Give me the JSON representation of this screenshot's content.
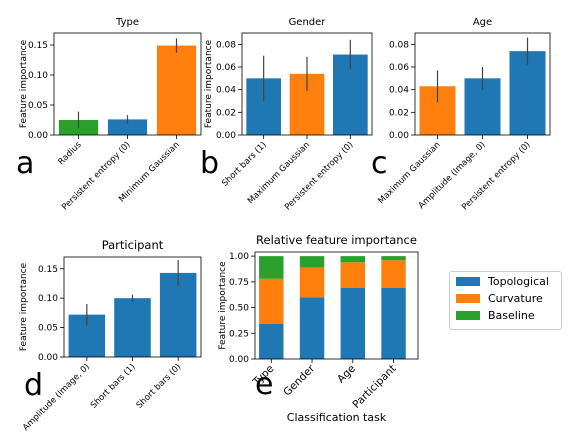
{
  "colors": {
    "topological": "#1f77b4",
    "curvature": "#ff7f0e",
    "baseline": "#2ca02c",
    "errorbar": "#444444"
  },
  "chart_data": [
    {
      "panel": "a",
      "type": "bar",
      "title": "Type",
      "ylabel": "Feature importance",
      "ylim": [
        0,
        0.17
      ],
      "yticks": [
        "0.00",
        "0.05",
        "0.10",
        "0.15"
      ],
      "ytick_values": [
        0,
        0.05,
        0.1,
        0.15
      ],
      "categories": [
        "Radius",
        "Persistent entropy (0)",
        "Minimum Gaussian"
      ],
      "values": [
        0.025,
        0.026,
        0.149
      ],
      "errors": [
        0.014,
        0.007,
        0.012
      ],
      "bar_colors": [
        "baseline",
        "topological",
        "curvature"
      ]
    },
    {
      "panel": "b",
      "type": "bar",
      "title": "Gender",
      "ylabel": "Feature importance",
      "ylim": [
        0,
        0.09
      ],
      "yticks": [
        "0.00",
        "0.02",
        "0.04",
        "0.06",
        "0.08"
      ],
      "ytick_values": [
        0,
        0.02,
        0.04,
        0.06,
        0.08
      ],
      "categories": [
        "Short bars (1)",
        "Maximum Gaussian",
        "Persistent entropy (0)"
      ],
      "values": [
        0.05,
        0.054,
        0.071
      ],
      "errors": [
        0.02,
        0.015,
        0.013
      ],
      "bar_colors": [
        "topological",
        "curvature",
        "topological"
      ]
    },
    {
      "panel": "c",
      "type": "bar",
      "title": "Age",
      "ylabel": "",
      "ylim": [
        0,
        0.09
      ],
      "yticks": [
        "0.00",
        "0.02",
        "0.04",
        "0.06",
        "0.08"
      ],
      "ytick_values": [
        0,
        0.02,
        0.04,
        0.06,
        0.08
      ],
      "categories": [
        "Maximum Gaussian",
        "Amplitude (Image, 0)",
        "Persistent entropy (0)"
      ],
      "values": [
        0.043,
        0.05,
        0.074
      ],
      "errors": [
        0.014,
        0.01,
        0.012
      ],
      "bar_colors": [
        "curvature",
        "topological",
        "topological"
      ]
    },
    {
      "panel": "d",
      "type": "bar",
      "title": "Participant",
      "ylabel": "Feature importance",
      "ylim": [
        0,
        0.17
      ],
      "yticks": [
        "0.00",
        "0.05",
        "0.10",
        "0.15"
      ],
      "ytick_values": [
        0,
        0.05,
        0.1,
        0.15
      ],
      "categories": [
        "Amplitude (Image, 0)",
        "Short bars (1)",
        "Short bars (0)"
      ],
      "values": [
        0.072,
        0.1,
        0.143
      ],
      "errors": [
        0.018,
        0.006,
        0.022
      ],
      "bar_colors": [
        "topological",
        "topological",
        "topological"
      ]
    },
    {
      "panel": "e",
      "type": "bar",
      "stacked": true,
      "title": "Relative feature importance",
      "ylabel": "Feature importance",
      "xlabel": "Classification task",
      "ylim": [
        0,
        1.04
      ],
      "yticks": [
        "0.00",
        "0.25",
        "0.50",
        "0.75",
        "1.00"
      ],
      "ytick_values": [
        0,
        0.25,
        0.5,
        0.75,
        1.0
      ],
      "categories": [
        "Type",
        "Gender",
        "Age",
        "Participant"
      ],
      "series": [
        {
          "name": "Topological",
          "color": "topological",
          "values": [
            0.34,
            0.6,
            0.69,
            0.69
          ]
        },
        {
          "name": "Curvature",
          "color": "curvature",
          "values": [
            0.44,
            0.29,
            0.25,
            0.27
          ]
        },
        {
          "name": "Baseline",
          "color": "baseline",
          "values": [
            0.22,
            0.11,
            0.06,
            0.04
          ]
        }
      ],
      "legend_position": "right"
    }
  ]
}
